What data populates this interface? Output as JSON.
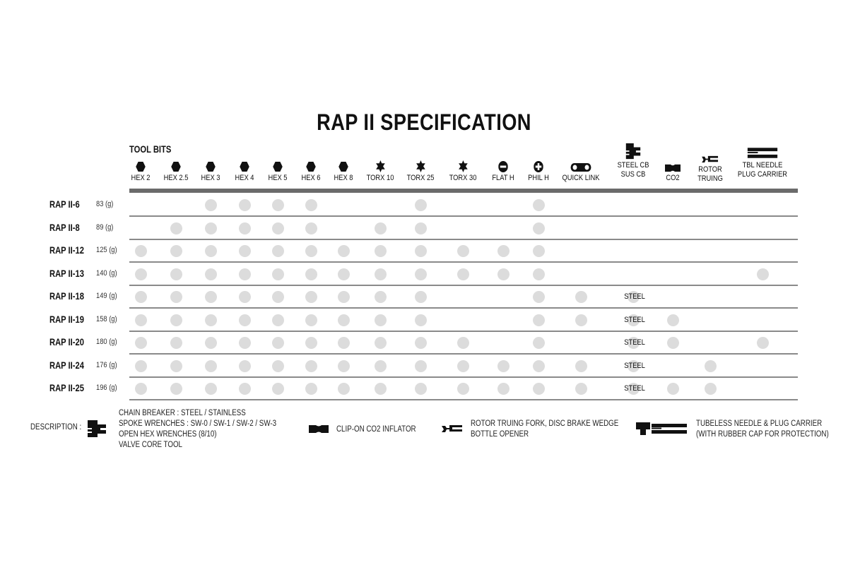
{
  "title": "RAP II SPECIFICATION",
  "section_label": "TOOL BITS",
  "columns": [
    {
      "label": "HEX 2",
      "icon": "hexagon-icon"
    },
    {
      "label": "HEX 2.5",
      "icon": "hexagon-icon"
    },
    {
      "label": "HEX 3",
      "icon": "hexagon-icon"
    },
    {
      "label": "HEX 4",
      "icon": "hexagon-icon"
    },
    {
      "label": "HEX 5",
      "icon": "hexagon-icon"
    },
    {
      "label": "HEX 6",
      "icon": "hexagon-icon"
    },
    {
      "label": "HEX 8",
      "icon": "hexagon-icon"
    },
    {
      "label": "TORX 10",
      "icon": "torx-star-icon"
    },
    {
      "label": "TORX 25",
      "icon": "torx-star-icon"
    },
    {
      "label": "TORX 30",
      "icon": "torx-star-icon"
    },
    {
      "label": "FLAT H",
      "icon": "flat-head-icon"
    },
    {
      "label": "PHIL H",
      "icon": "phillips-head-icon"
    },
    {
      "label": "QUICK LINK",
      "icon": "quick-link-icon"
    },
    {
      "label": "STEEL CB",
      "label2": "SUS CB",
      "icon": "chain-breaker-icon"
    },
    {
      "label": "CO2",
      "icon": "co2-inflator-icon"
    },
    {
      "label": "ROTOR",
      "label2": "TRUING",
      "icon": "rotor-truing-icon"
    },
    {
      "label": "TBL NEEDLE",
      "label2": "PLUG CARRIER",
      "icon": "tubeless-carrier-icon"
    }
  ],
  "rows": [
    {
      "name": "RAP II-6",
      "weight": "83 (g)",
      "cells": [
        0,
        0,
        1,
        1,
        1,
        1,
        0,
        0,
        1,
        0,
        0,
        1,
        0,
        0,
        0,
        0,
        0
      ]
    },
    {
      "name": "RAP II-8",
      "weight": "89 (g)",
      "cells": [
        0,
        1,
        1,
        1,
        1,
        1,
        0,
        1,
        1,
        0,
        0,
        1,
        0,
        0,
        0,
        0,
        0
      ]
    },
    {
      "name": "RAP II-12",
      "weight": "125 (g)",
      "cells": [
        1,
        1,
        1,
        1,
        1,
        1,
        1,
        1,
        1,
        1,
        1,
        1,
        0,
        0,
        0,
        0,
        0
      ]
    },
    {
      "name": "RAP II-13",
      "weight": "140 (g)",
      "cells": [
        1,
        1,
        1,
        1,
        1,
        1,
        1,
        1,
        1,
        1,
        1,
        1,
        0,
        0,
        0,
        0,
        1
      ]
    },
    {
      "name": "RAP II-18",
      "weight": "149 (g)",
      "cells": [
        1,
        1,
        1,
        1,
        1,
        1,
        1,
        1,
        1,
        0,
        0,
        1,
        1,
        "STEEL",
        0,
        0,
        0
      ]
    },
    {
      "name": "RAP II-19",
      "weight": "158 (g)",
      "cells": [
        1,
        1,
        1,
        1,
        1,
        1,
        1,
        1,
        1,
        0,
        0,
        1,
        1,
        "STEEL",
        1,
        0,
        0
      ]
    },
    {
      "name": "RAP II-20",
      "weight": "180 (g)",
      "cells": [
        1,
        1,
        1,
        1,
        1,
        1,
        1,
        1,
        1,
        1,
        0,
        1,
        0,
        "STEEL",
        1,
        0,
        1
      ]
    },
    {
      "name": "RAP II-24",
      "weight": "176 (g)",
      "cells": [
        1,
        1,
        1,
        1,
        1,
        1,
        1,
        1,
        1,
        1,
        1,
        1,
        1,
        "STEEL",
        0,
        1,
        0
      ]
    },
    {
      "name": "RAP II-25",
      "weight": "196 (g)",
      "cells": [
        1,
        1,
        1,
        1,
        1,
        1,
        1,
        1,
        1,
        1,
        1,
        1,
        1,
        "STEEL",
        1,
        1,
        0
      ]
    }
  ],
  "description": {
    "label": "DESCRIPTION :",
    "chain_breaker": [
      "CHAIN BREAKER : STEEL / STAINLESS",
      "SPOKE WRENCHES : SW-0 / SW-1 / SW-2 / SW-3",
      "OPEN HEX WRENCHES (8/10)",
      "VALVE CORE TOOL"
    ],
    "co2": [
      "CLIP-ON CO2 INFLATOR"
    ],
    "rotor": [
      "ROTOR TRUING FORK, DISC BRAKE WEDGE",
      "BOTTLE OPENER"
    ],
    "tubeless": [
      "TUBELESS NEEDLE & PLUG CARRIER",
      "(WITH RUBBER CAP FOR PROTECTION)"
    ]
  },
  "colors": {
    "dot": "#dcdcdc",
    "header_bar": "#6b6b6b",
    "row_line": "#8a8a8a"
  }
}
